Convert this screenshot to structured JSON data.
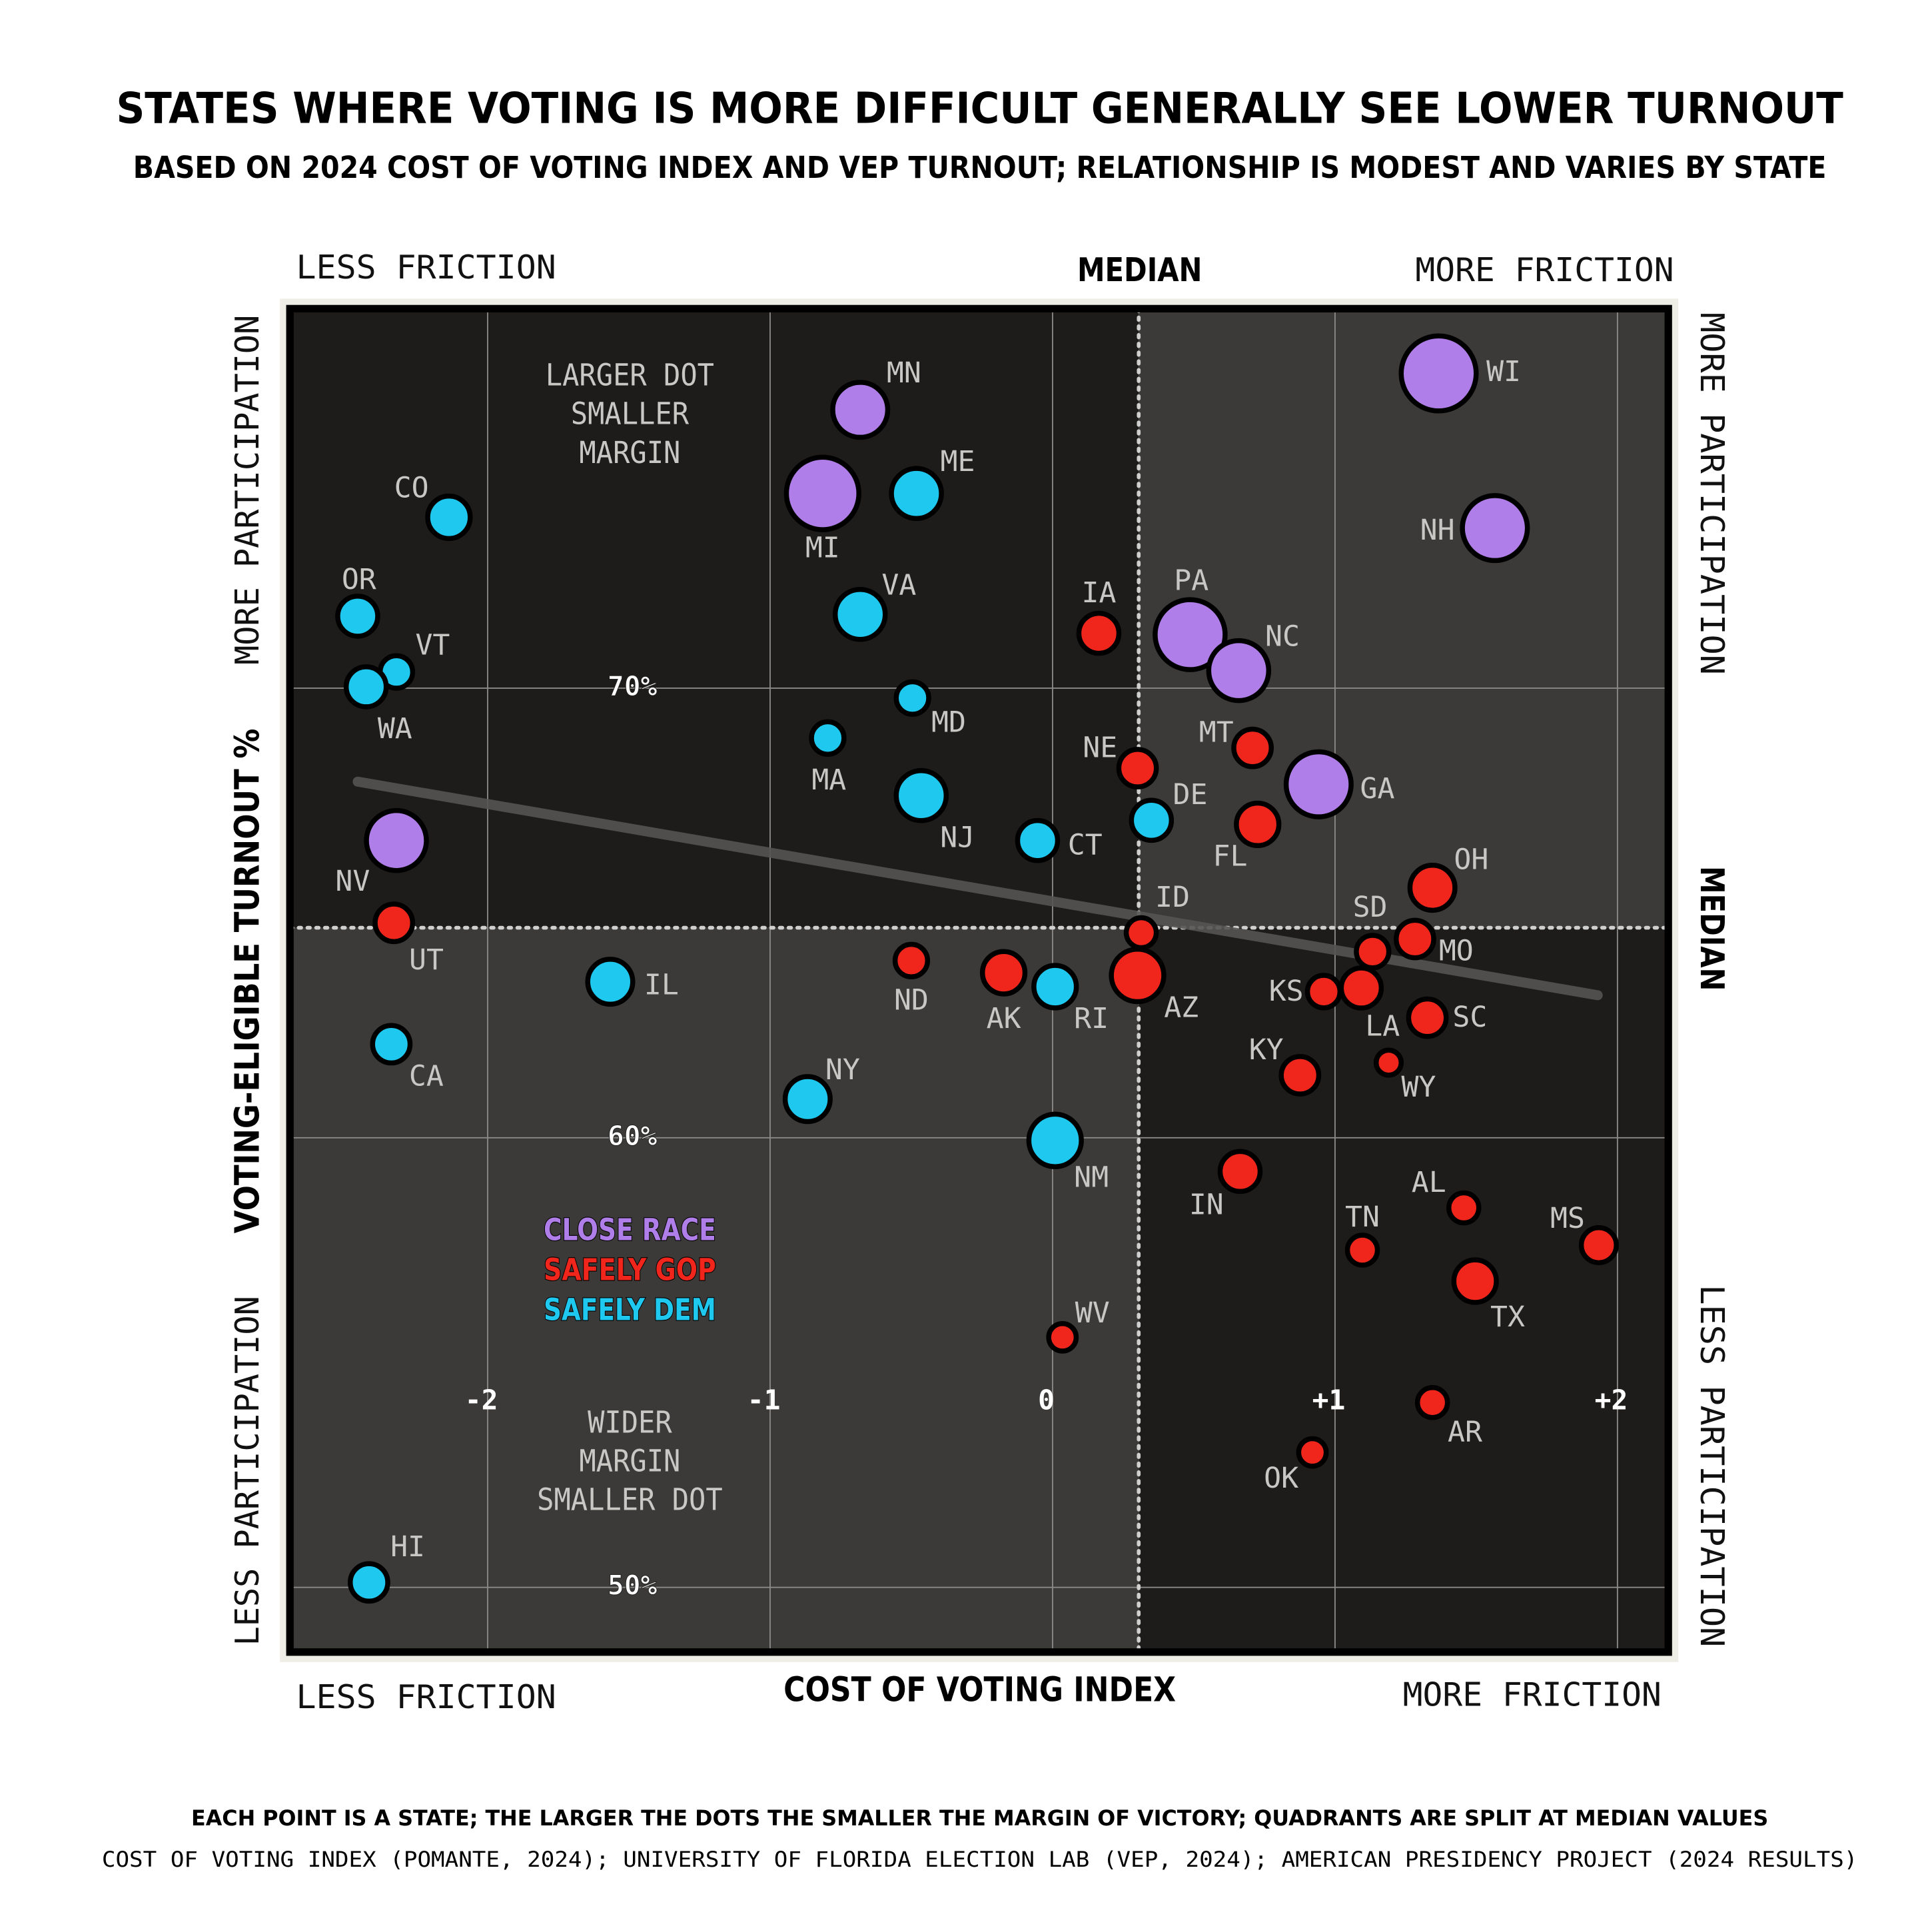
{
  "chart_data": {
    "type": "scatter",
    "title": "STATES WHERE VOTING IS MORE DIFFICULT GENERALLY SEE LOWER TURNOUT",
    "subtitle": "BASED ON 2024 COST OF VOTING INDEX AND VEP TURNOUT; RELATIONSHIP IS MODEST AND VARIES BY STATE",
    "x_label": "COST OF VOTING INDEX",
    "y_label": "VOTING-ELIGIBLE TURNOUT %",
    "top_left_label": "LESS FRICTION",
    "top_right_label": "MORE FRICTION",
    "bottom_left_label": "LESS FRICTION",
    "bottom_right_label": "MORE FRICTION",
    "left_top_label": "MORE PARTICIPATION",
    "left_bottom_label": "LESS PARTICIPATION",
    "right_top_label": "MORE PARTICIPATION",
    "right_bottom_label": "LESS PARTICIPATION",
    "x_median_label": "MEDIAN",
    "y_median_label": "MEDIAN",
    "annotation_top": [
      "LARGER DOT",
      "SMALLER",
      "MARGIN"
    ],
    "annotation_bottom": [
      "WIDER",
      "MARGIN",
      "SMALLER DOT"
    ],
    "footnotes": [
      "EACH POINT IS A STATE; THE LARGER THE DOTS THE SMALLER THE MARGIN OF VICTORY; QUADRANTS ARE SPLIT AT MEDIAN VALUES",
      "COST OF VOTING INDEX (POMANTE, 2024); UNIVERSITY OF FLORIDA ELECTION LAB (VEP, 2024); AMERICAN PRESIDENCY PROJECT (2024 RESULTS)"
    ],
    "xlim": [
      -2.7,
      2.18
    ],
    "ylim": [
      48.56,
      78.44
    ],
    "xticks": [
      -2,
      -1,
      0,
      {
        "value": 1,
        "label": "+1"
      },
      {
        "value": 2,
        "label": "+2"
      }
    ],
    "yticks": [
      {
        "value": 50,
        "label": "50%"
      },
      {
        "value": 60,
        "label": "60%"
      },
      {
        "value": 70,
        "label": "70%"
      }
    ],
    "grid": true,
    "median_x": 0.305,
    "median_y": 64.67,
    "trend_line": {
      "x": [
        -2.46,
        1.93
      ],
      "y": [
        67.92,
        63.17
      ],
      "color": "#555452"
    },
    "series": [
      {
        "name": "CLOSE RACE",
        "color": "#b07ee8",
        "labels": [
          "WI",
          "NH",
          "MN",
          "MI",
          "PA",
          "NC",
          "GA",
          "NV"
        ],
        "x": [
          1.367,
          1.566,
          -0.681,
          -0.814,
          0.487,
          0.659,
          0.942,
          -2.323
        ],
        "values": [
          77.0,
          73.56,
          76.19,
          74.33,
          71.19,
          70.39,
          67.86,
          66.61
        ],
        "sizes": [
          30,
          26,
          22,
          29,
          28,
          24,
          26,
          24
        ]
      },
      {
        "name": "SAFELY GOP",
        "color": "#f0261c",
        "labels": [
          "IA",
          "MT",
          "NE",
          "FL",
          "OH",
          "ID",
          "SD",
          "MO",
          "UT",
          "ND",
          "AK",
          "AZ",
          "KS",
          "LA",
          "SC",
          "KY",
          "WY",
          "IN",
          "AL",
          "MS",
          "TN",
          "TX",
          "WV",
          "AR",
          "OK"
        ],
        "x": [
          0.164,
          0.708,
          0.301,
          0.726,
          1.345,
          0.314,
          1.133,
          1.283,
          -2.332,
          -0.5,
          -0.173,
          0.301,
          0.96,
          1.093,
          1.327,
          0.876,
          1.19,
          0.664,
          1.456,
          1.934,
          1.097,
          1.496,
          0.035,
          1.345,
          0.92
        ],
        "values": [
          71.22,
          68.67,
          68.22,
          66.97,
          65.56,
          64.56,
          64.14,
          64.42,
          64.78,
          63.94,
          63.67,
          63.61,
          63.25,
          63.33,
          62.67,
          61.39,
          61.67,
          59.25,
          58.44,
          57.61,
          57.5,
          56.81,
          55.56,
          54.11,
          53.0
        ],
        "sizes": [
          16,
          15,
          15,
          17,
          18,
          12,
          13,
          15,
          15,
          13,
          17,
          21,
          13,
          16,
          15,
          15,
          10,
          16,
          12,
          14,
          12,
          17,
          11,
          12,
          11
        ]
      },
      {
        "name": "SAFELY DEM",
        "color": "#1ec8ee",
        "labels": [
          "CO",
          "OR",
          "VT",
          "WA",
          "ME",
          "VA",
          "MD",
          "MA",
          "NJ",
          "DE",
          "CT",
          "IL",
          "RI",
          "CA",
          "NY",
          "NM",
          "HI"
        ],
        "x": [
          -2.137,
          -2.46,
          -2.323,
          -2.43,
          -0.482,
          -0.681,
          -0.496,
          -0.796,
          -0.465,
          0.35,
          -0.053,
          -1.566,
          0.009,
          -2.341,
          -0.867,
          0.009,
          -2.42
        ],
        "values": [
          73.8,
          71.6,
          70.36,
          70.03,
          74.33,
          71.64,
          69.78,
          68.89,
          67.61,
          67.06,
          66.61,
          63.47,
          63.36,
          62.08,
          60.86,
          59.94,
          50.11
        ],
        "sizes": [
          17,
          16,
          13,
          16,
          20,
          20,
          13,
          13,
          20,
          16,
          16,
          18,
          17,
          15,
          18,
          21,
          15
        ]
      }
    ]
  }
}
